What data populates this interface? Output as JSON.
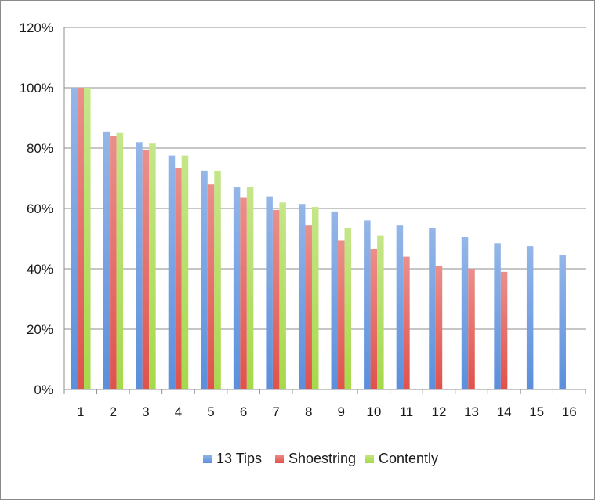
{
  "chart_data": {
    "type": "bar",
    "title": "",
    "xlabel": "",
    "ylabel": "",
    "categories": [
      "1",
      "2",
      "3",
      "4",
      "5",
      "6",
      "7",
      "8",
      "9",
      "10",
      "11",
      "12",
      "13",
      "14",
      "15",
      "16"
    ],
    "ylim": [
      0,
      120
    ],
    "yticks": [
      "0%",
      "20%",
      "40%",
      "60%",
      "80%",
      "100%",
      "120%"
    ],
    "ytick_values": [
      0,
      20,
      40,
      60,
      80,
      100,
      120
    ],
    "grid": true,
    "legend_position": "bottom",
    "series": [
      {
        "name": "13 Tips",
        "color": "#5b8fdc",
        "values": [
          100,
          85.5,
          82,
          77.5,
          72.5,
          67,
          64,
          61.5,
          59,
          56,
          54.5,
          53.5,
          50.5,
          48.5,
          47.5,
          44.5
        ]
      },
      {
        "name": "Shoestring",
        "color": "#e0524c",
        "values": [
          100,
          84,
          79.5,
          73.5,
          68,
          63.5,
          59.5,
          54.5,
          49.5,
          46.5,
          44,
          41,
          40,
          39,
          null,
          null
        ]
      },
      {
        "name": "Contently",
        "color": "#a6d94a",
        "values": [
          100,
          85,
          81.5,
          77.5,
          72.5,
          67,
          62,
          60.5,
          53.5,
          51,
          null,
          null,
          null,
          null,
          null,
          null
        ]
      }
    ]
  }
}
